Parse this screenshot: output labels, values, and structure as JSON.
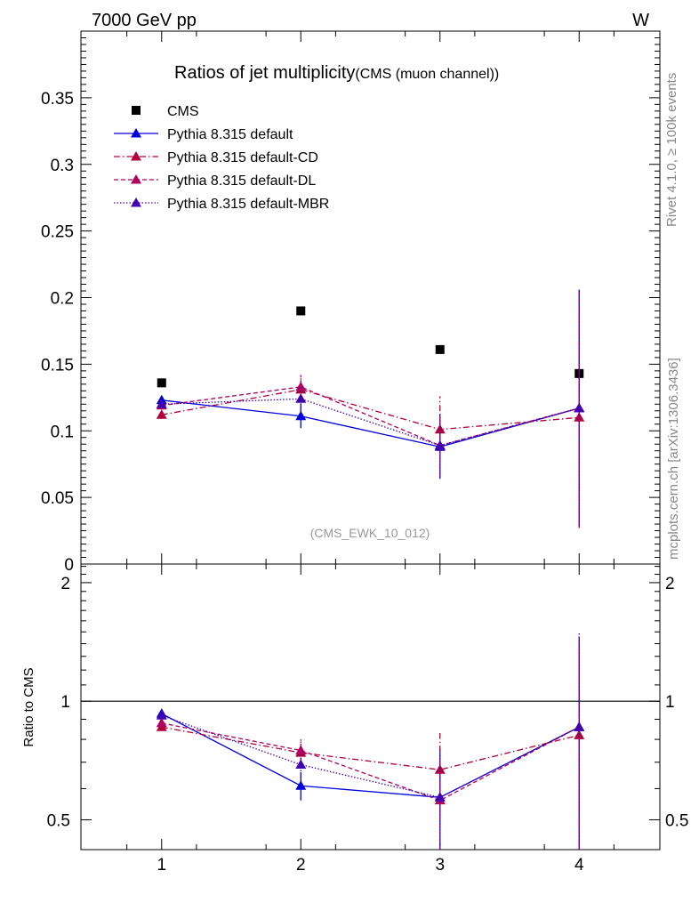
{
  "header": {
    "left": "7000 GeV pp",
    "right": "W"
  },
  "side": {
    "top": "Rivet 4.1.0, ≥ 100k events",
    "bottom": "mcplots.cern.ch [arXiv:1306.3436]"
  },
  "chart_data": {
    "type": "scatter",
    "title": "Ratios of jet multiplicity",
    "subtitle": "(CMS (muon channel))",
    "watermark": "(CMS_EWK_10_012)",
    "xlabel": "",
    "ylabel": "",
    "x": [
      1,
      2,
      3,
      4
    ],
    "xlim": [
      0.42,
      4.58
    ],
    "ylim": [
      0,
      0.4
    ],
    "xticks": [
      "1",
      "2",
      "3",
      "4"
    ],
    "yticks": [
      "0",
      "0.05",
      "0.1",
      "0.15",
      "0.2",
      "0.25",
      "0.3",
      "0.35"
    ],
    "legend_position": "top-left",
    "series": [
      {
        "name": "CMS",
        "color": "#000000",
        "marker": "square",
        "line": "none",
        "values": [
          0.136,
          0.19,
          0.161,
          0.143
        ]
      },
      {
        "name": "Pythia 8.315 default",
        "color": "#0000dd",
        "marker": "triangle",
        "line": "solid",
        "values": [
          0.123,
          0.111,
          0.088,
          0.117
        ],
        "err_low": [
          0.003,
          0.009,
          0.024,
          0.089
        ],
        "err_high": [
          0.003,
          0.009,
          0.024,
          0.089
        ]
      },
      {
        "name": "Pythia 8.315 default-CD",
        "color": "#b0003a",
        "marker": "triangle",
        "line": "dashdot",
        "values": [
          0.112,
          0.131,
          0.101,
          0.11
        ],
        "err_low": [
          0.003,
          0.009,
          0.025,
          0.083
        ],
        "err_high": [
          0.003,
          0.009,
          0.025,
          0.083
        ]
      },
      {
        "name": "Pythia 8.315 default-DL",
        "color": "#b00060",
        "marker": "triangle",
        "line": "dashed",
        "values": [
          0.119,
          0.133,
          0.089,
          0.117
        ],
        "err_low": [
          0.003,
          0.009,
          0.023,
          0.087
        ],
        "err_high": [
          0.003,
          0.009,
          0.023,
          0.087
        ]
      },
      {
        "name": "Pythia 8.315 default-MBR",
        "color": "#4000b0",
        "marker": "triangle",
        "line": "dotted",
        "values": [
          0.12,
          0.124,
          0.089,
          0.117
        ],
        "err_low": [
          0.003,
          0.009,
          0.024,
          0.088
        ],
        "err_high": [
          0.003,
          0.009,
          0.024,
          0.088
        ]
      }
    ],
    "ratio": {
      "ylabel": "Ratio to CMS",
      "ylim": [
        0.42,
        2.23
      ],
      "yticks": [
        "0.5",
        "1",
        "2"
      ],
      "reference": 1,
      "series": [
        {
          "name": "Pythia 8.315 default",
          "values": [
            0.93,
            0.61,
            0.57,
            0.86
          ],
          "err_low": [
            0.02,
            0.05,
            0.19,
            0.6
          ],
          "err_high": [
            0.02,
            0.05,
            0.19,
            0.6
          ]
        },
        {
          "name": "Pythia 8.315 default-CD",
          "values": [
            0.86,
            0.74,
            0.67,
            0.82
          ],
          "err_low": [
            0.02,
            0.05,
            0.16,
            0.57
          ],
          "err_high": [
            0.02,
            0.05,
            0.16,
            0.57
          ]
        },
        {
          "name": "Pythia 8.315 default-DL",
          "values": [
            0.88,
            0.75,
            0.56,
            0.86
          ],
          "err_low": [
            0.02,
            0.05,
            0.16,
            0.58
          ],
          "err_high": [
            0.02,
            0.05,
            0.16,
            0.58
          ]
        },
        {
          "name": "Pythia 8.315 default-MBR",
          "values": [
            0.92,
            0.69,
            0.57,
            0.86
          ],
          "err_low": [
            0.02,
            0.05,
            0.17,
            0.63
          ],
          "err_high": [
            0.02,
            0.05,
            0.17,
            0.63
          ]
        }
      ]
    }
  }
}
